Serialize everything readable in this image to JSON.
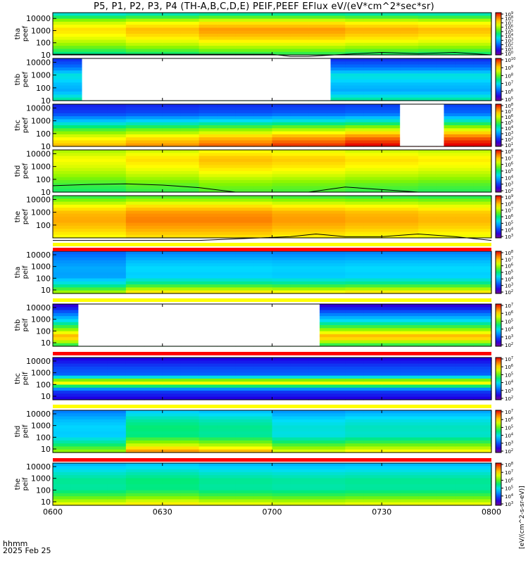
{
  "title": "P5, P1, P2, P3, P4 (TH-A,B,C,D,E) PEIF,PEEF EFlux eV/(eV*cm^2*sec*sr)",
  "footer": {
    "line1": "hhmm",
    "line2": "2025 Feb 25"
  },
  "right_label": "[eV/(cm^2-s-sr-eV)]",
  "colors": {
    "blank": "#ffffff",
    "axis": "#000000",
    "flag_yellow": "#ffff00",
    "flag_red": "#ff0000"
  },
  "chart_data": {
    "type": "heatmap",
    "x_tick_labels": [
      "0600",
      "0630",
      "0700",
      "0730",
      "0800"
    ],
    "x_range_minutes": [
      0,
      120
    ],
    "panels": [
      {
        "id": "tha-peef",
        "ylabel": [
          "tha",
          "peef"
        ],
        "species": "electron",
        "ylim": [
          10,
          30000
        ],
        "log": true,
        "yticks": [
          "10000",
          "1000",
          "100",
          "10"
        ],
        "cbar_ticks": [
          "10^9",
          "10^8",
          "10^7",
          "10^6",
          "10^5",
          "10^4",
          "10^3",
          "10^2",
          "10^1",
          "10^0"
        ],
        "level_rows": [
          0.45,
          0.72,
          0.82,
          0.76,
          0.66,
          0.52
        ],
        "level_time": [
          0.95,
          1.0,
          1.05,
          1.05,
          1.02,
          1.0
        ],
        "gaps": [],
        "overlay_minutes": [
          0,
          10,
          20,
          30,
          40,
          50,
          60,
          65,
          70,
          80,
          90,
          100,
          110,
          120
        ],
        "overlay_log": [
          1.05,
          1.05,
          1.05,
          1.05,
          1.05,
          1.05,
          1.05,
          0.88,
          0.88,
          1.05,
          1.2,
          1.1,
          1.2,
          1.0
        ]
      },
      {
        "id": "thb-peef",
        "ylabel": [
          "thb",
          "peef"
        ],
        "species": "electron",
        "ylim": [
          10,
          20000
        ],
        "log": true,
        "yticks": [
          "10000",
          "1000",
          "100",
          "10"
        ],
        "cbar_ticks": [
          "10^10",
          "10^9",
          "10^8",
          "10^7",
          "10^6",
          "10^5"
        ],
        "level_rows": [
          0.18,
          0.26,
          0.42,
          0.35,
          0.32,
          0.46
        ],
        "level_time": [
          1.0,
          1.0,
          1.0,
          1.0,
          1.0,
          1.0
        ],
        "gaps": [
          [
            8,
            76
          ]
        ],
        "overlay_minutes": [],
        "overlay_log": []
      },
      {
        "id": "thc-peef",
        "ylabel": [
          "thc",
          "peef"
        ],
        "species": "electron",
        "ylim": [
          10,
          20000
        ],
        "log": true,
        "yticks": [
          "10000",
          "1000",
          "100",
          "10"
        ],
        "cbar_ticks": [
          "10^8",
          "10^7",
          "10^6",
          "10^5",
          "10^4",
          "10^3",
          "10^2",
          "10^1"
        ],
        "level_rows": [
          0.18,
          0.22,
          0.4,
          0.62,
          0.8,
          0.9
        ],
        "level_time": [
          0.9,
          0.95,
          1.0,
          1.05,
          1.1,
          1.12
        ],
        "gaps": [
          [
            95,
            107
          ]
        ],
        "overlay_minutes": [],
        "overlay_log": []
      },
      {
        "id": "thd-peef",
        "ylabel": [
          "thd",
          "peef"
        ],
        "species": "electron",
        "ylim": [
          10,
          20000
        ],
        "log": true,
        "yticks": [
          "10000",
          "1000",
          "100",
          "10"
        ],
        "cbar_ticks": [
          "10^8",
          "10^7",
          "10^6",
          "10^5",
          "10^4",
          "10^3",
          "10^2"
        ],
        "level_rows": [
          0.7,
          0.78,
          0.74,
          0.68,
          0.6,
          0.55
        ],
        "level_time": [
          0.95,
          1.0,
          1.05,
          1.03,
          1.0,
          0.98
        ],
        "gaps": [],
        "overlay_minutes": [
          0,
          10,
          20,
          30,
          40,
          50,
          60,
          70,
          80,
          90,
          100,
          110,
          120
        ],
        "overlay_log": [
          1.5,
          1.6,
          1.65,
          1.55,
          1.35,
          1.0,
          1.0,
          1.0,
          1.4,
          1.2,
          1.0,
          1.0,
          1.0
        ]
      },
      {
        "id": "the-peef",
        "ylabel": [
          "the",
          "peef"
        ],
        "species": "electron",
        "ylim": [
          10,
          20000
        ],
        "log": true,
        "yticks": [
          "10000",
          "1000",
          "100"
        ],
        "cbar_ticks": [
          "10^9",
          "10^8",
          "10^7",
          "10^6",
          "10^5",
          "10^4",
          "10^3"
        ],
        "level_rows": [
          0.55,
          0.72,
          0.82,
          0.84,
          0.8,
          0.74
        ],
        "level_time": [
          1.0,
          1.05,
          1.05,
          1.02,
          1.0,
          0.98
        ],
        "gaps": [],
        "overlay_minutes": [
          0,
          40,
          65,
          72,
          80,
          90,
          100,
          110,
          120
        ],
        "overlay_log": [
          0.8,
          0.8,
          1.1,
          1.3,
          1.1,
          1.1,
          1.3,
          1.1,
          0.8
        ]
      },
      {
        "id": "tha-peif",
        "ylabel": [
          "tha",
          "peif"
        ],
        "species": "ion",
        "ylim": [
          5,
          20000
        ],
        "log": true,
        "yticks": [
          "10000",
          "1000",
          "100",
          "10"
        ],
        "cbar_ticks": [
          "10^8",
          "10^7",
          "10^6",
          "10^5",
          "10^4",
          "10^3",
          "10^2"
        ],
        "level_rows": [
          0.28,
          0.34,
          0.38,
          0.36,
          0.5,
          0.76
        ],
        "level_time": [
          0.85,
          1.0,
          1.0,
          0.98,
          1.0,
          1.0
        ],
        "gaps": [],
        "overlay_minutes": [],
        "overlay_log": []
      },
      {
        "id": "thb-peif",
        "ylabel": [
          "thb",
          "peif"
        ],
        "species": "ion",
        "ylim": [
          5,
          20000
        ],
        "log": true,
        "yticks": [
          "10000",
          "1000",
          "100",
          "10"
        ],
        "cbar_ticks": [
          "10^7",
          "10^6",
          "10^5",
          "10^4",
          "10^3",
          "10^2"
        ],
        "level_rows": [
          0.1,
          0.25,
          0.4,
          0.62,
          0.85,
          0.55
        ],
        "level_time": [
          1.0,
          1.0,
          1.0,
          1.0,
          1.0,
          1.0
        ],
        "gaps": [
          [
            7,
            73
          ]
        ],
        "overlay_minutes": [],
        "overlay_log": []
      },
      {
        "id": "thc-peif",
        "ylabel": [
          "thc",
          "peif"
        ],
        "species": "ion",
        "ylim": [
          5,
          20000
        ],
        "log": true,
        "yticks": [
          "10000",
          "1000",
          "100",
          "10"
        ],
        "cbar_ticks": [
          "10^7",
          "10^6",
          "10^5",
          "10^4",
          "10^3",
          "10^2"
        ],
        "level_rows": [
          0.12,
          0.2,
          0.24,
          0.78,
          0.2,
          0.12
        ],
        "level_time": [
          1.0,
          1.0,
          1.0,
          1.0,
          1.0,
          1.0
        ],
        "gaps": [],
        "overlay_minutes": [],
        "overlay_log": []
      },
      {
        "id": "thd-peif",
        "ylabel": [
          "thd",
          "peif"
        ],
        "species": "ion",
        "ylim": [
          5,
          20000
        ],
        "log": true,
        "yticks": [
          "10000",
          "1000",
          "100",
          "10"
        ],
        "cbar_ticks": [
          "10^7",
          "10^6",
          "10^5",
          "10^4",
          "10^3",
          "10^2"
        ],
        "level_rows": [
          0.32,
          0.4,
          0.44,
          0.42,
          0.56,
          0.74
        ],
        "level_time": [
          0.85,
          1.15,
          1.1,
          0.95,
          1.0,
          1.0
        ],
        "gaps": [],
        "overlay_minutes": [],
        "overlay_log": []
      },
      {
        "id": "the-peif",
        "ylabel": [
          "the",
          "peif"
        ],
        "species": "ion",
        "ylim": [
          5,
          20000
        ],
        "log": true,
        "yticks": [
          "10000",
          "1000",
          "100",
          "10"
        ],
        "cbar_ticks": [
          "10^8",
          "10^7",
          "10^6",
          "10^5",
          "10^4",
          "10^3"
        ],
        "level_rows": [
          0.34,
          0.42,
          0.48,
          0.46,
          0.56,
          0.72
        ],
        "level_time": [
          1.0,
          1.05,
          1.0,
          0.98,
          1.0,
          1.0
        ],
        "gaps": [],
        "overlay_minutes": [],
        "overlay_log": []
      }
    ]
  }
}
